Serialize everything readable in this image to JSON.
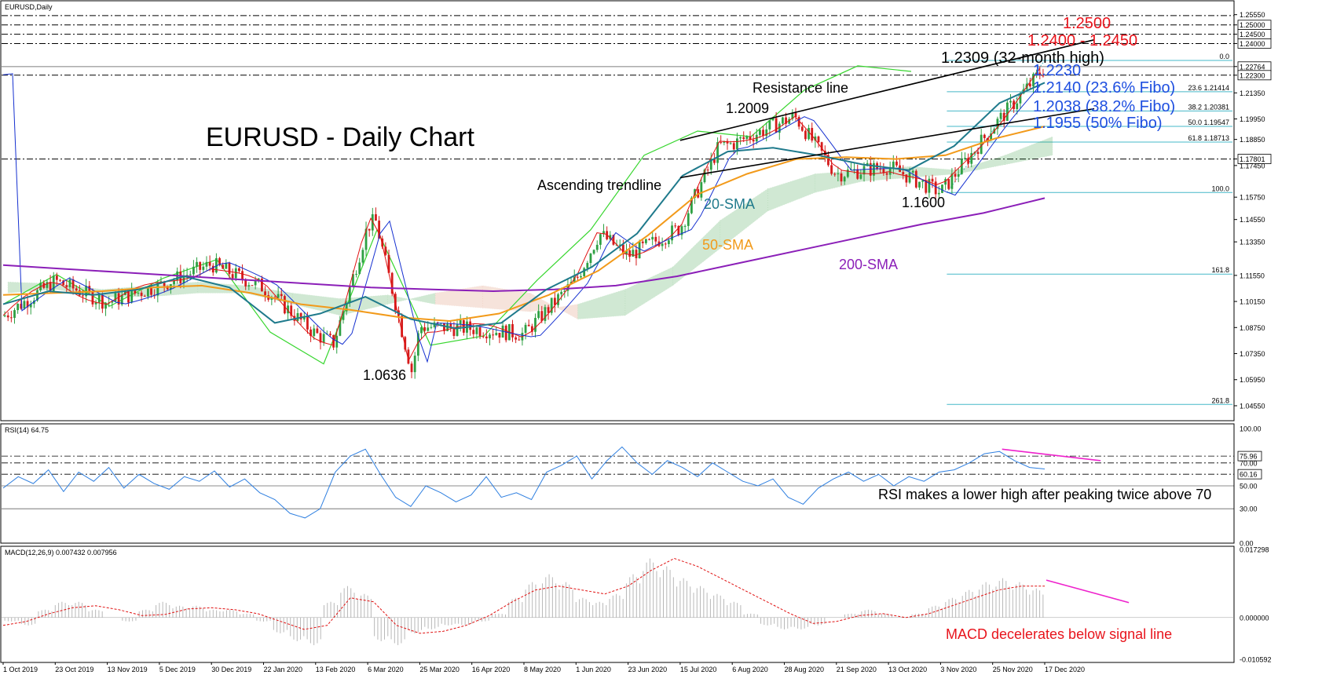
{
  "chart_data": [
    {
      "type": "candlestick",
      "symbol_label": "EURUSD,Daily",
      "title": "EURUSD - Daily Chart",
      "x_tick_labels": [
        "1 Oct 2019",
        "23 Oct 2019",
        "13 Nov 2019",
        "5 Dec 2019",
        "30 Dec 2019",
        "22 Jan 2020",
        "13 Feb 2020",
        "6 Mar 2020",
        "25 Mar 2020",
        "16 Apr 2020",
        "8 May 2020",
        "1 Jun 2020",
        "23 Jun 2020",
        "15 Jul 2020",
        "6 Aug 2020",
        "28 Aug 2020",
        "21 Sep 2020",
        "13 Oct 2020",
        "3 Nov 2020",
        "25 Nov 2020",
        "17 Dec 2020"
      ],
      "y_tick_labels": [
        "1.25550",
        "1.25000",
        "1.24500",
        "1.24000",
        "1.22764",
        "1.22300",
        "1.21350",
        "1.19950",
        "1.18850",
        "1.17801",
        "1.17450",
        "1.15750",
        "1.14550",
        "1.13350",
        "1.11550",
        "1.10150",
        "1.08750",
        "1.07350",
        "1.05950",
        "1.04550"
      ],
      "ylim": [
        1.04,
        1.26
      ],
      "price_series": [
        {
          "date": "1 Oct 2019",
          "close": 1.0935
        },
        {
          "date": "23 Oct 2019",
          "close": 1.1125
        },
        {
          "date": "13 Nov 2019",
          "close": 1.101
        },
        {
          "date": "5 Dec 2019",
          "close": 1.11
        },
        {
          "date": "30 Dec 2019",
          "close": 1.1215
        },
        {
          "date": "22 Jan 2020",
          "close": 1.109
        },
        {
          "date": "13 Feb 2020",
          "close": 1.084
        },
        {
          "date": "20 Feb 2020",
          "close": 1.079
        },
        {
          "date": "6 Mar 2020",
          "close": 1.142
        },
        {
          "date": "9 Mar 2020",
          "close": 1.145
        },
        {
          "date": "23 Mar 2020",
          "close": 1.0636
        },
        {
          "date": "25 Mar 2020",
          "close": 1.088
        },
        {
          "date": "16 Apr 2020",
          "close": 1.087
        },
        {
          "date": "8 May 2020",
          "close": 1.084
        },
        {
          "date": "1 Jun 2020",
          "close": 1.113
        },
        {
          "date": "10 Jun 2020",
          "close": 1.138
        },
        {
          "date": "23 Jun 2020",
          "close": 1.126
        },
        {
          "date": "15 Jul 2020",
          "close": 1.141
        },
        {
          "date": "31 Jul 2020",
          "close": 1.185
        },
        {
          "date": "6 Aug 2020",
          "close": 1.186
        },
        {
          "date": "1 Sep 2020",
          "close": 1.2009
        },
        {
          "date": "21 Sep 2020",
          "close": 1.17
        },
        {
          "date": "13 Oct 2020",
          "close": 1.174
        },
        {
          "date": "3 Nov 2020",
          "close": 1.16
        },
        {
          "date": "25 Nov 2020",
          "close": 1.195
        },
        {
          "date": "17 Dec 2020",
          "close": 1.227
        },
        {
          "date": "31 Dec 2020",
          "close": 1.223
        }
      ],
      "sma20": [
        1.1,
        1.107,
        1.105,
        1.108,
        1.115,
        1.109,
        1.09,
        1.095,
        1.104,
        1.092,
        1.087,
        1.09,
        1.108,
        1.12,
        1.138,
        1.169,
        1.182,
        1.184,
        1.18,
        1.175,
        1.172,
        1.185,
        1.208,
        1.219
      ],
      "sma50": [
        1.105,
        1.106,
        1.107,
        1.109,
        1.11,
        1.106,
        1.1,
        1.097,
        1.093,
        1.091,
        1.095,
        1.105,
        1.118,
        1.137,
        1.159,
        1.17,
        1.178,
        1.179,
        1.178,
        1.18,
        1.189,
        1.1955
      ],
      "sma200": [
        1.121,
        1.119,
        1.117,
        1.115,
        1.113,
        1.111,
        1.109,
        1.108,
        1.107,
        1.108,
        1.11,
        1.115,
        1.122,
        1.129,
        1.136,
        1.143,
        1.149,
        1.157
      ],
      "ichimoku_chikou_green": [
        1.1,
        1.116,
        1.099,
        1.114,
        1.124,
        1.085,
        1.068,
        1.14,
        1.078,
        1.083,
        1.113,
        1.14,
        1.18,
        1.193,
        1.19,
        1.215,
        1.228,
        1.225
      ],
      "trendlines": [
        {
          "name": "Resistance line",
          "from": {
            "date": "15 Jul 2020",
            "value": 1.188
          },
          "to": {
            "date": "31 Dec 2020",
            "value": 1.242
          }
        },
        {
          "name": "Ascending trendline",
          "from": {
            "date": "15 Jul 2020",
            "value": 1.168
          },
          "to": {
            "date": "31 Dec 2020",
            "value": 1.205
          }
        }
      ],
      "horizontal_levels": [
        1.255,
        1.25,
        1.245,
        1.24,
        1.2276,
        1.223,
        1.178
      ],
      "fibonacci": {
        "high": 1.2309,
        "low": 1.16,
        "levels": [
          {
            "label": "0.0",
            "value": 1.2309
          },
          {
            "label": "23.6 1.21414",
            "value": 1.2141
          },
          {
            "label": "38.2 1.20381",
            "value": 1.2038
          },
          {
            "label": "50.0 1.19547",
            "value": 1.1955
          },
          {
            "label": "61.8 1.18713",
            "value": 1.1871
          },
          {
            "label": "100.0",
            "value": 1.16
          },
          {
            "label": "161.8",
            "value": 1.1162
          },
          {
            "label": "261.8",
            "value": 1.0462
          }
        ]
      },
      "annotations": [
        {
          "text": "1.2500",
          "color": "#e8141c"
        },
        {
          "text": "1.2400 - 1.2450",
          "color": "#e8141c"
        },
        {
          "text": "1.2309 (32-month high)",
          "color": "#000000"
        },
        {
          "text": "1.2230",
          "color": "#1f4fe0"
        },
        {
          "text": "1.2140 (23.6% Fibo)",
          "color": "#1f4fe0"
        },
        {
          "text": "1.2038 (38.2% Fibo)",
          "color": "#1f4fe0"
        },
        {
          "text": "1.1955 (50% Fibo)",
          "color": "#1f4fe0"
        },
        {
          "text": "Resistance line",
          "color": "#000000"
        },
        {
          "text": "1.2009",
          "color": "#000000"
        },
        {
          "text": "Ascending trendline",
          "color": "#000000"
        },
        {
          "text": "20-SMA",
          "color": "#1f7a8c"
        },
        {
          "text": "50-SMA",
          "color": "#f29a1a"
        },
        {
          "text": "200-SMA",
          "color": "#8b1fb8"
        },
        {
          "text": "1.1600",
          "color": "#000000"
        },
        {
          "text": "1.0636",
          "color": "#000000"
        }
      ],
      "colors": {
        "bull": "#2ea043",
        "bear": "#d41c1c",
        "sma20": "#1f7a8c",
        "sma50": "#f29a1a",
        "sma200": "#8b1fb8",
        "kijun": "#1530d0",
        "tenkan": "#e01010",
        "chikou": "#37d62e",
        "fibo": "#46b8c8",
        "cloud_green": "#2f9a3a",
        "cloud_red": "#d9825e"
      }
    },
    {
      "type": "line",
      "label": "RSI(14) 64.75",
      "y_tick_labels": [
        "100.00",
        "75.96",
        "70.00",
        "60.16",
        "50.00",
        "30.00",
        "0.00"
      ],
      "ylim": [
        0,
        100
      ],
      "levels": [
        75.96,
        70,
        60.16,
        50,
        30
      ],
      "series": [
        {
          "values": [
            48,
            58,
            52,
            64,
            45,
            62,
            54,
            66,
            48,
            60,
            52,
            47,
            58,
            54,
            63,
            49,
            56,
            44,
            38,
            26,
            22,
            30,
            62,
            76,
            82,
            60,
            40,
            32,
            50,
            44,
            36,
            42,
            58,
            40,
            44,
            38,
            62,
            68,
            76,
            56,
            72,
            84,
            70,
            60,
            72,
            66,
            58,
            70,
            62,
            54,
            50,
            56,
            40,
            34,
            48,
            56,
            62,
            54,
            60,
            50,
            58,
            54,
            62,
            64,
            70,
            78,
            80,
            72,
            66,
            64.75
          ]
        }
      ],
      "annotation": {
        "text": "RSI makes a lower high after peaking twice above 70",
        "color": "#000000"
      },
      "colors": {
        "line": "#2e7fe0",
        "divergence": "#ee22cc"
      }
    },
    {
      "type": "bar",
      "label": "MACD(12,26,9) 0.007432 0.007956",
      "y_tick_labels": [
        "0.017298",
        "0.000000",
        "-0.010592"
      ],
      "ylim": [
        -0.0106,
        0.0173
      ],
      "histogram": [
        -0.001,
        -0.002,
        0.002,
        0.004,
        0.004,
        0.002,
        0.0,
        -0.001,
        0.002,
        0.004,
        0.003,
        0.003,
        0.002,
        0.002,
        0.001,
        -0.001,
        -0.004,
        -0.006,
        -0.007,
        0.004,
        0.008,
        0.006,
        -0.006,
        -0.007,
        -0.004,
        -0.003,
        -0.002,
        -0.002,
        -0.001,
        0.001,
        0.005,
        0.009,
        0.011,
        0.009,
        0.005,
        0.004,
        0.006,
        0.011,
        0.015,
        0.013,
        0.01,
        0.008,
        0.006,
        0.004,
        0.001,
        -0.002,
        -0.003,
        -0.003,
        -0.002,
        0.0,
        0.001,
        0.002,
        0.001,
        0.0,
        0.001,
        0.003,
        0.005,
        0.007,
        0.009,
        0.01,
        0.009,
        0.0074
      ],
      "signal": [
        -0.002,
        -0.001,
        0.001,
        0.0025,
        0.003,
        0.002,
        0.0005,
        0.0008,
        0.0022,
        0.0025,
        0.002,
        0.001,
        -0.001,
        -0.003,
        -0.002,
        0.005,
        0.004,
        -0.002,
        -0.004,
        -0.0035,
        -0.002,
        0.0005,
        0.004,
        0.007,
        0.008,
        0.007,
        0.006,
        0.008,
        0.012,
        0.015,
        0.013,
        0.01,
        0.007,
        0.004,
        0.001,
        -0.0015,
        -0.001,
        0.0005,
        0.001,
        0.0,
        0.001,
        0.003,
        0.005,
        0.007,
        0.008,
        0.008
      ],
      "annotation": {
        "text": "MACD decelerates below signal line",
        "color": "#e8141c"
      },
      "colors": {
        "histogram": "#b8b8b8",
        "signal": "#e01010",
        "divergence": "#ee22cc"
      }
    }
  ]
}
